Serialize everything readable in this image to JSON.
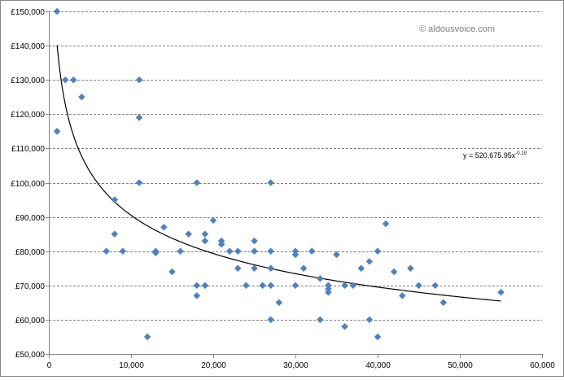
{
  "watermark": "© aldousvoice.com",
  "colors": {
    "points": "#4F81BD",
    "trend": "#000000",
    "grid": "#808080",
    "axis": "#868686"
  },
  "chart_data": {
    "type": "scatter",
    "title": "",
    "xlabel": "",
    "ylabel": "",
    "xlim": [
      0,
      60000
    ],
    "ylim": [
      50000,
      150000
    ],
    "x_ticks": [
      0,
      10000,
      20000,
      30000,
      40000,
      50000,
      60000
    ],
    "x_tick_labels": [
      "0",
      "10,000",
      "20,000",
      "30,000",
      "40,000",
      "50,000",
      "60,000"
    ],
    "y_ticks": [
      50000,
      60000,
      70000,
      80000,
      90000,
      100000,
      110000,
      120000,
      130000,
      140000,
      150000
    ],
    "y_tick_labels": [
      "£50,000",
      "£60,000",
      "£70,000",
      "£80,000",
      "£90,000",
      "£100,000",
      "£110,000",
      "£120,000",
      "£130,000",
      "£140,000",
      "£150,000"
    ],
    "grid": "horizontal dashed",
    "legend": "none",
    "marker": "diamond",
    "points": [
      [
        1000,
        150000
      ],
      [
        1000,
        115000
      ],
      [
        2000,
        130000
      ],
      [
        3000,
        130000
      ],
      [
        4000,
        125000
      ],
      [
        7000,
        80000
      ],
      [
        8000,
        95000
      ],
      [
        8000,
        85000
      ],
      [
        9000,
        80000
      ],
      [
        11000,
        130000
      ],
      [
        11000,
        119000
      ],
      [
        11000,
        100000
      ],
      [
        12000,
        55000
      ],
      [
        13000,
        80000
      ],
      [
        13000,
        79500
      ],
      [
        14000,
        87000
      ],
      [
        15000,
        74000
      ],
      [
        16000,
        80000
      ],
      [
        17000,
        85000
      ],
      [
        18000,
        100000
      ],
      [
        18000,
        70000
      ],
      [
        18000,
        67000
      ],
      [
        19000,
        85000
      ],
      [
        19000,
        83000
      ],
      [
        19000,
        70000
      ],
      [
        20000,
        89000
      ],
      [
        21000,
        83000
      ],
      [
        21000,
        82000
      ],
      [
        22000,
        80000
      ],
      [
        23000,
        80000
      ],
      [
        23000,
        75000
      ],
      [
        24000,
        70000
      ],
      [
        25000,
        83000
      ],
      [
        25000,
        80000
      ],
      [
        25000,
        75000
      ],
      [
        26000,
        70000
      ],
      [
        27000,
        100000
      ],
      [
        27000,
        80000
      ],
      [
        27000,
        75000
      ],
      [
        27000,
        70000
      ],
      [
        27000,
        60000
      ],
      [
        28000,
        65000
      ],
      [
        30000,
        80000
      ],
      [
        30000,
        79000
      ],
      [
        30000,
        70000
      ],
      [
        31000,
        75000
      ],
      [
        32000,
        80000
      ],
      [
        33000,
        72000
      ],
      [
        33000,
        60000
      ],
      [
        34000,
        70000
      ],
      [
        34000,
        69000
      ],
      [
        34000,
        68000
      ],
      [
        35000,
        79000
      ],
      [
        36000,
        70000
      ],
      [
        36000,
        58000
      ],
      [
        37000,
        70000
      ],
      [
        38000,
        75000
      ],
      [
        39000,
        77000
      ],
      [
        39000,
        60000
      ],
      [
        40000,
        80000
      ],
      [
        40000,
        55000
      ],
      [
        41000,
        88000
      ],
      [
        42000,
        74000
      ],
      [
        43000,
        67000
      ],
      [
        44000,
        75000
      ],
      [
        45000,
        70000
      ],
      [
        47000,
        70000
      ],
      [
        48000,
        65000
      ],
      [
        55000,
        68000
      ]
    ],
    "trendline": {
      "type": "power",
      "coefficient": 520675.95,
      "exponent": -0.19,
      "x_range": [
        1000,
        55000
      ],
      "equation_text": "y = 520,675.95x",
      "equation_exponent": "-0.19"
    }
  }
}
